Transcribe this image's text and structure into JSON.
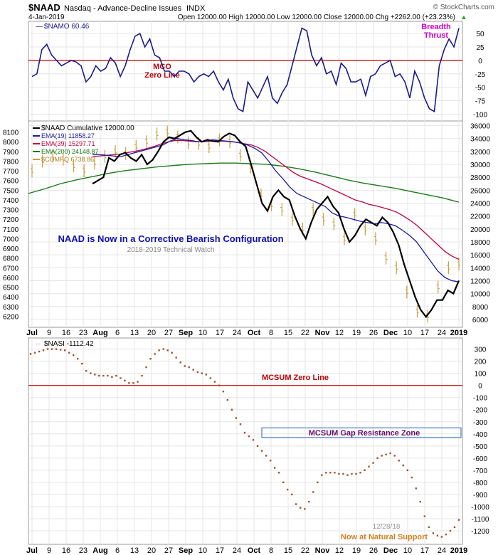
{
  "header": {
    "symbol": "$NAAD",
    "name": "Nasdaq - Advance-Decline Issues",
    "exchange": "INDX",
    "date": "4-Jan-2019",
    "ohlc": "Open 12000.00  High 12000.00  Low 12000.00  Close 12000.00  Chg +2262.00 (+23.23%)",
    "brand": "© StockCharts.com",
    "up_glyph": "▲"
  },
  "x_axis": {
    "labels": [
      "Jul",
      "9",
      "16",
      "23",
      "Aug",
      "6",
      "13",
      "20",
      "27",
      "Sep",
      "10",
      "17",
      "24",
      "Oct",
      "8",
      "15",
      "22",
      "Nov",
      "12",
      "19",
      "26",
      "Dec",
      "10",
      "17",
      "24",
      "2019"
    ],
    "bold": [
      "Jul",
      "Aug",
      "Sep",
      "Oct",
      "Nov",
      "Dec",
      "2019"
    ]
  },
  "colors": {
    "namo": "#1a1a8c",
    "zero_line": "#c00000",
    "naad": "#000000",
    "ema19": "#1a1aa0",
    "ema39": "#c0003c",
    "ema200": "#1a7a1a",
    "compq": "#c8a040",
    "nasi": "#a05030",
    "annotation_blue": "#1010b0",
    "annotation_red": "#c00000",
    "annotation_magenta": "#d000d0",
    "annotation_orange": "#d08020",
    "gap_zone": "#2060c0"
  },
  "chart_data": [
    {
      "type": "line",
      "panel": "momentum",
      "series": [
        {
          "name": "$NAMO 60.46",
          "values": [
            -30,
            -25,
            20,
            30,
            10,
            0,
            -10,
            -5,
            0,
            -3,
            -10,
            -40,
            -30,
            -10,
            -20,
            -15,
            5,
            -5,
            -30,
            -10,
            20,
            45,
            50,
            25,
            40,
            10,
            5,
            -20,
            -20,
            -30,
            -20,
            -20,
            -25,
            -40,
            -30,
            -25,
            -30,
            -20,
            -40,
            -55,
            -35,
            -70,
            -90,
            -95,
            -40,
            -55,
            -70,
            -50,
            -30,
            -70,
            -80,
            -60,
            -45,
            -10,
            25,
            60,
            55,
            10,
            -10,
            5,
            -25,
            -20,
            -45,
            -5,
            -15,
            -40,
            -40,
            -35,
            -65,
            -30,
            -25,
            -10,
            -5,
            0,
            -30,
            -25,
            -40,
            -70,
            -20,
            -40,
            -70,
            -90,
            -95,
            -10,
            20,
            40,
            25,
            60
          ]
        }
      ],
      "ylim": [
        -110,
        70
      ],
      "yticks": [
        "75",
        "50",
        "25",
        "0",
        "-25",
        "-50",
        "-75",
        "-100"
      ],
      "zero_label": "MCO\nZero Line",
      "right_label": "Breadth\nThrust"
    },
    {
      "type": "line",
      "panel": "main",
      "series": [
        {
          "name": "$NAAD Cumulative 12000.00",
          "values": [
            27000,
            27500,
            28000,
            31000,
            30500,
            31500,
            31800,
            31000,
            30500,
            31500,
            30000,
            30700,
            32000,
            33500,
            34200,
            34000,
            34500,
            35000,
            35200,
            34200,
            33500,
            33800,
            33600,
            33500,
            34300,
            34800,
            34500,
            33500,
            32800,
            30000,
            27000,
            24000,
            22800,
            25000,
            26000,
            25000,
            24500,
            22000,
            20000,
            18500,
            21000,
            23000,
            24000,
            25000,
            23500,
            22500,
            20000,
            18000,
            19000,
            20500,
            21500,
            21000,
            20500,
            21800,
            21000,
            19500,
            17500,
            14500,
            12000,
            9500,
            7500,
            6400,
            7500,
            9000,
            9000,
            10500,
            10000,
            12000
          ]
        },
        {
          "name": "EMA(19) 11858.27",
          "values": [
            31500,
            31500,
            31400,
            31300,
            31200,
            31500,
            31800,
            32100,
            32400,
            32700,
            33000,
            33600,
            34000,
            33800,
            33700,
            33500,
            33600,
            33800,
            33700,
            33600,
            33500,
            33300,
            33000,
            32500,
            31800,
            30500,
            29000,
            27800,
            26500,
            25500,
            25000,
            24500,
            24000,
            23500,
            22500,
            22000,
            21800,
            21500,
            21200,
            21000,
            20800,
            21000,
            20800,
            20500,
            19800,
            19000,
            18000,
            16500,
            15000,
            13500,
            12500,
            12000,
            11800
          ]
        },
        {
          "name": "EMA(39) 15297.71",
          "values": [
            31200,
            31300,
            31400,
            31500,
            31600,
            31800,
            32000,
            32200,
            32500,
            32800,
            33200,
            33500,
            33700,
            33700,
            33600,
            33500,
            33500,
            33600,
            33600,
            33600,
            33500,
            33400,
            33200,
            33000,
            32600,
            32000,
            31200,
            30400,
            29600,
            28800,
            28200,
            27800,
            27400,
            27000,
            26500,
            26000,
            25500,
            25000,
            24500,
            24200,
            23800,
            23600,
            23300,
            23000,
            22600,
            22000,
            21300,
            20500,
            19500,
            18500,
            17500,
            16500,
            15800,
            15300
          ]
        },
        {
          "name": "EMA(200) 24148.87",
          "values": [
            25500,
            26200,
            27000,
            27600,
            28100,
            28600,
            29000,
            29300,
            29600,
            29800,
            30000,
            30100,
            30200,
            30200,
            30100,
            30000,
            29700,
            29300,
            28800,
            28200,
            27600,
            27100,
            26700,
            26300,
            25800,
            25300,
            24800,
            24150
          ]
        },
        {
          "name": "$COMPQ 6738.86",
          "values": [
            7700,
            7800,
            7850,
            7820,
            7750,
            7700,
            7780,
            7850,
            7900,
            7880,
            7950,
            8000,
            8080,
            8100,
            8050,
            7990,
            7980,
            7950,
            8020,
            8000,
            7860,
            7740,
            7450,
            7350,
            7300,
            7200,
            7100,
            7300,
            7200,
            7150,
            7000,
            7250,
            7100,
            7000,
            6800,
            6700,
            6450,
            6250,
            6200,
            6500,
            6700,
            6738
          ]
        }
      ],
      "ylim_left": [
        6100,
        8200
      ],
      "ylim_right": [
        5000,
        36500
      ],
      "yticks_left": [
        "8100",
        "8000",
        "7900",
        "7800",
        "7700",
        "7600",
        "7500",
        "7400",
        "7300",
        "7200",
        "7100",
        "7000",
        "6900",
        "6800",
        "6700",
        "6600",
        "6500",
        "6400",
        "6300",
        "6200"
      ],
      "yticks_right": [
        "36000",
        "34000",
        "32000",
        "30000",
        "28000",
        "26000",
        "24000",
        "22000",
        "20000",
        "18000",
        "16000",
        "14000",
        "12000",
        "10000",
        "8000",
        "6000"
      ],
      "annotation": "NAAD is Now in a Corrective Bearish Configuration",
      "watermark": "2018-2019 Technical Watch"
    },
    {
      "type": "scatter",
      "panel": "summation",
      "series": [
        {
          "name": "$NASI -1112.42",
          "values": [
            260,
            270,
            280,
            290,
            300,
            300,
            300,
            295,
            290,
            270,
            250,
            220,
            180,
            120,
            100,
            90,
            80,
            80,
            80,
            70,
            80,
            60,
            40,
            20,
            20,
            30,
            80,
            150,
            220,
            260,
            290,
            300,
            290,
            270,
            230,
            190,
            160,
            150,
            130,
            110,
            100,
            90,
            60,
            30,
            0,
            -50,
            -120,
            -200,
            -270,
            -320,
            -390,
            -420,
            -450,
            -500,
            -540,
            -580,
            -620,
            -680,
            -720,
            -800,
            -860,
            -900,
            -980,
            -1010,
            -1020,
            -960,
            -880,
            -800,
            -740,
            -720,
            -720,
            -720,
            -730,
            -730,
            -740,
            -730,
            -730,
            -720,
            -700,
            -670,
            -640,
            -600,
            -580,
            -570,
            -560,
            -580,
            -620,
            -660,
            -700,
            -760,
            -850,
            -960,
            -1080,
            -1170,
            -1220,
            -1240,
            -1250,
            -1230,
            -1200,
            -1170,
            -1110
          ]
        }
      ],
      "ylim": [
        -1300,
        380
      ],
      "yticks": [
        "300",
        "200",
        "100",
        "0",
        "-100",
        "-200",
        "-300",
        "-400",
        "-500",
        "-600",
        "-700",
        "-800",
        "-900",
        "-1000",
        "-1100",
        "-1200"
      ],
      "zero_label": "MCSUM Zero Line",
      "gap_zone": {
        "from": -350,
        "to": -430,
        "label": "MCSUM Gap Resistance Zone"
      },
      "date_note": "12/28/18",
      "support_note": "Now at Natural Support"
    }
  ]
}
